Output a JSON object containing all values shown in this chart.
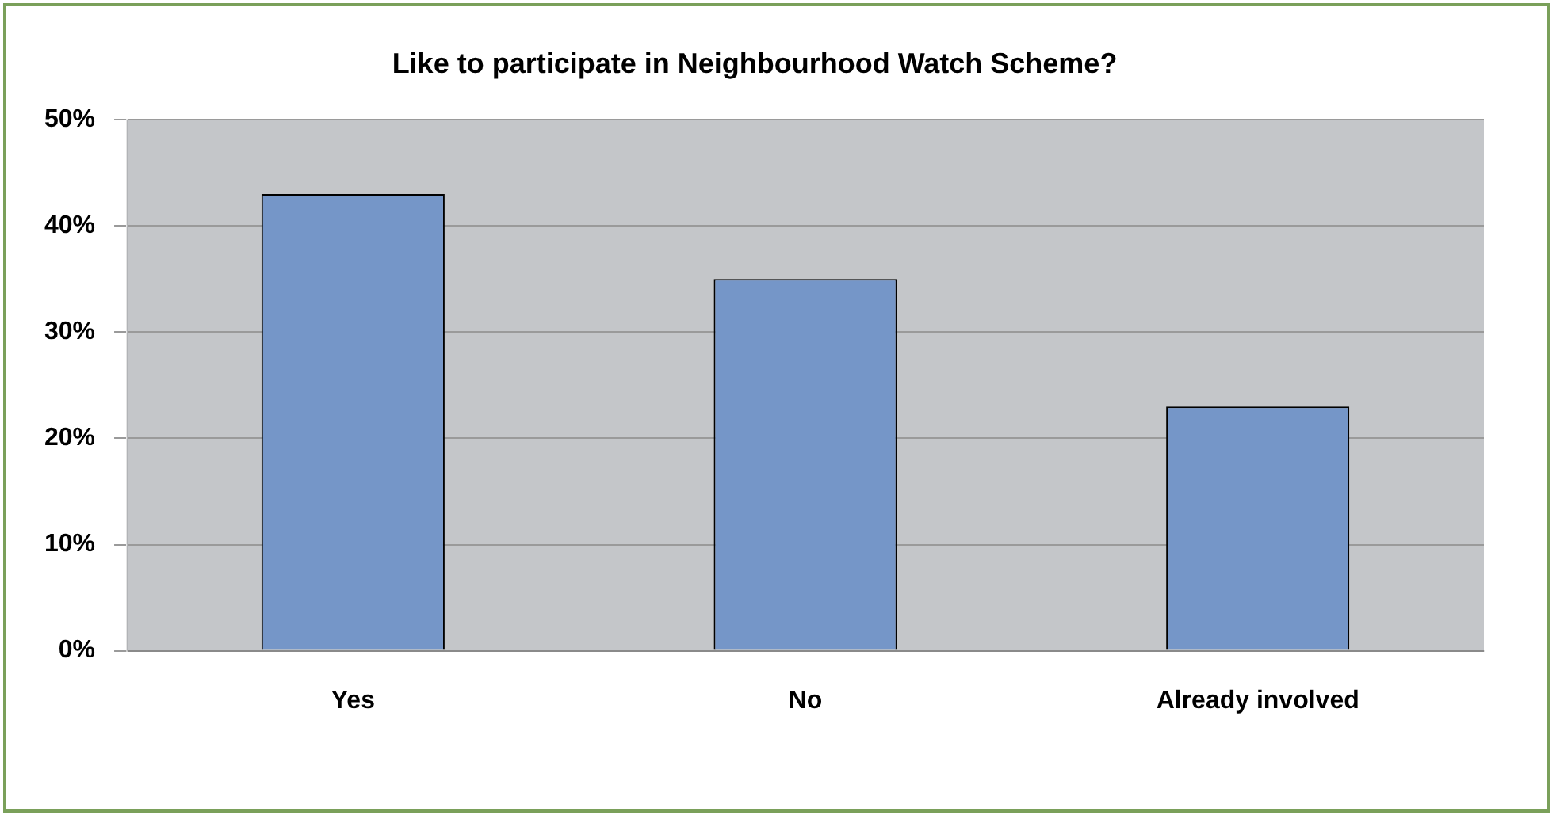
{
  "chart_data": {
    "type": "bar",
    "title": "Like to participate in Neighbourhood Watch Scheme?",
    "categories": [
      "Yes",
      "No",
      "Already involved"
    ],
    "values": [
      43,
      35,
      23
    ],
    "color": "#7596c8",
    "ylim": [
      0,
      50
    ],
    "yticks": [
      {
        "value": 0,
        "label": "0%"
      },
      {
        "value": 10,
        "label": "10%"
      },
      {
        "value": 20,
        "label": "20%"
      },
      {
        "value": 30,
        "label": "30%"
      },
      {
        "value": 40,
        "label": "40%"
      },
      {
        "value": 50,
        "label": "50%"
      }
    ],
    "grid": "y",
    "legend": false
  }
}
